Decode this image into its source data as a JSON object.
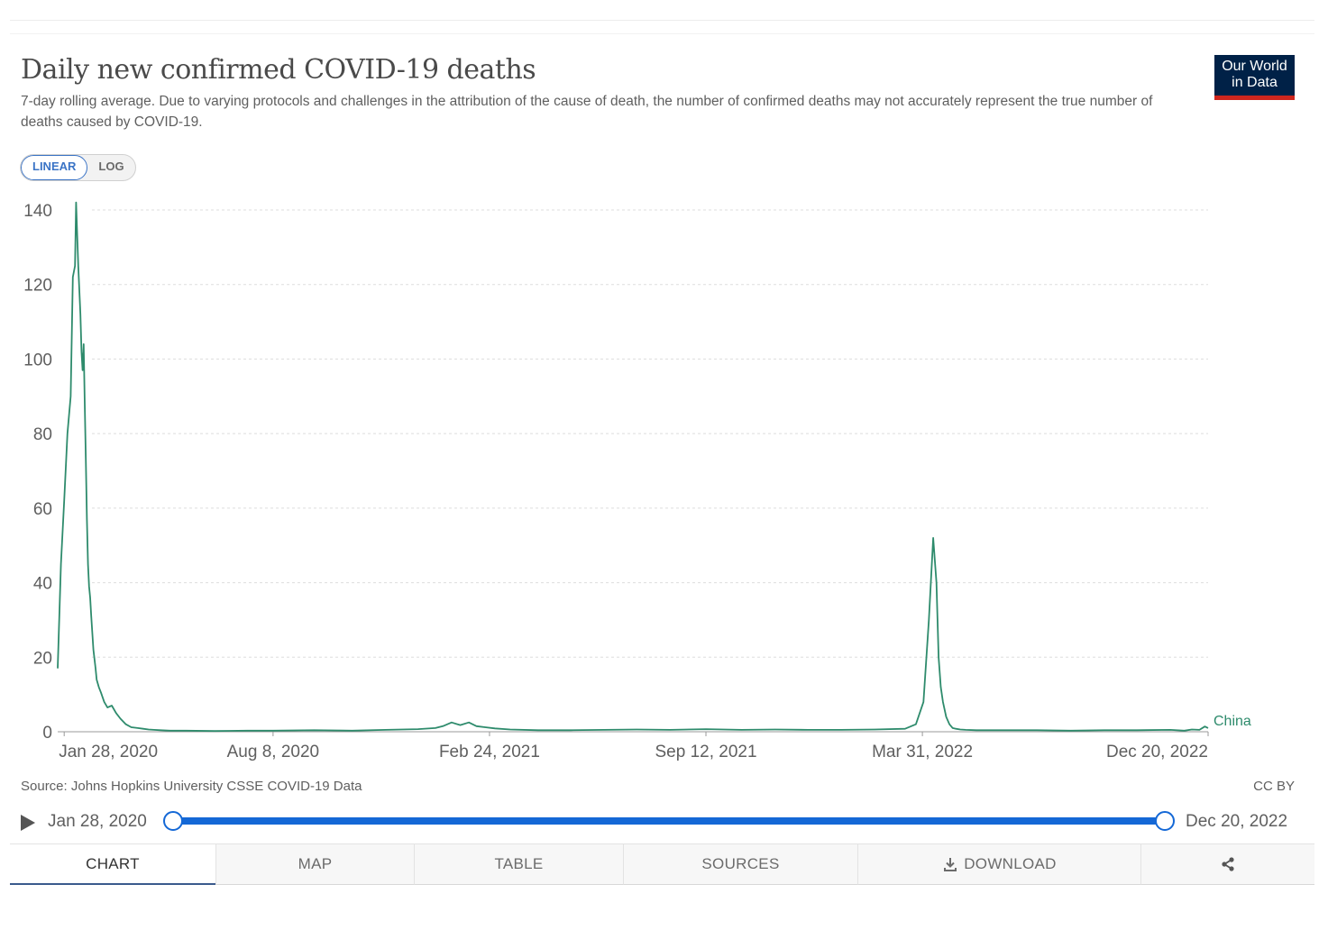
{
  "header": {
    "title": "Daily new confirmed COVID-19 deaths",
    "subtitle": "7-day rolling average. Due to varying protocols and challenges in the attribution of the cause of death, the number of confirmed deaths may not accurately represent the true number of deaths caused by COVID-19.",
    "logo_line1": "Our World",
    "logo_line2": "in Data"
  },
  "scale_toggle": {
    "linear_label": "LINEAR",
    "log_label": "LOG",
    "selected": "LINEAR"
  },
  "footer": {
    "source": "Source: Johns Hopkins University CSSE COVID-19 Data",
    "license": "CC BY"
  },
  "timeline": {
    "start_label": "Jan 28, 2020",
    "end_label": "Dec 20, 2022"
  },
  "tabs": [
    {
      "label": "CHART",
      "active": true
    },
    {
      "label": "MAP",
      "active": false
    },
    {
      "label": "TABLE",
      "active": false
    },
    {
      "label": "SOURCES",
      "active": false
    },
    {
      "label": "DOWNLOAD",
      "active": false
    },
    {
      "label": "",
      "active": false
    }
  ],
  "colors": {
    "series": "#2e8b6c",
    "accent": "#1468d6",
    "logo_bg": "#002147",
    "logo_bar": "#ce261e"
  },
  "chart_data": {
    "type": "line",
    "title": "Daily new confirmed COVID-19 deaths",
    "ylabel": "",
    "xlabel": "",
    "ylim": [
      0,
      140
    ],
    "yticks": [
      0,
      20,
      40,
      60,
      80,
      100,
      120,
      140
    ],
    "xlim": [
      "2020-01-22",
      "2022-12-20"
    ],
    "xticks": [
      {
        "date": "2020-01-28",
        "label": "Jan 28, 2020"
      },
      {
        "date": "2020-08-08",
        "label": "Aug 8, 2020"
      },
      {
        "date": "2021-02-24",
        "label": "Feb 24, 2021"
      },
      {
        "date": "2021-09-12",
        "label": "Sep 12, 2021"
      },
      {
        "date": "2022-03-31",
        "label": "Mar 31, 2022"
      },
      {
        "date": "2022-12-20",
        "label": "Dec 20, 2022"
      }
    ],
    "grid": true,
    "series": [
      {
        "name": "China",
        "x": [
          "2020-01-22",
          "2020-01-25",
          "2020-01-28",
          "2020-01-31",
          "2020-02-03",
          "2020-02-05",
          "2020-02-07",
          "2020-02-08",
          "2020-02-10",
          "2020-02-12",
          "2020-02-13",
          "2020-02-14",
          "2020-02-15",
          "2020-02-16",
          "2020-02-17",
          "2020-02-18",
          "2020-02-19",
          "2020-02-20",
          "2020-02-21",
          "2020-02-22",
          "2020-02-24",
          "2020-02-26",
          "2020-02-27",
          "2020-02-29",
          "2020-03-02",
          "2020-03-05",
          "2020-03-08",
          "2020-03-12",
          "2020-03-16",
          "2020-03-20",
          "2020-03-25",
          "2020-03-30",
          "2020-04-05",
          "2020-04-10",
          "2020-04-15",
          "2020-04-20",
          "2020-04-26",
          "2020-05-05",
          "2020-05-20",
          "2020-06-15",
          "2020-07-15",
          "2020-08-08",
          "2020-09-15",
          "2020-10-20",
          "2020-11-20",
          "2020-12-20",
          "2021-01-05",
          "2021-01-12",
          "2021-01-20",
          "2021-01-28",
          "2021-02-05",
          "2021-02-12",
          "2021-02-20",
          "2021-03-01",
          "2021-03-15",
          "2021-04-10",
          "2021-05-10",
          "2021-06-10",
          "2021-07-10",
          "2021-08-10",
          "2021-09-12",
          "2021-10-15",
          "2021-11-15",
          "2021-12-15",
          "2022-01-15",
          "2022-02-15",
          "2022-03-15",
          "2022-03-25",
          "2022-04-01",
          "2022-04-06",
          "2022-04-10",
          "2022-04-13",
          "2022-04-15",
          "2022-04-17",
          "2022-04-19",
          "2022-04-22",
          "2022-04-25",
          "2022-04-28",
          "2022-05-01",
          "2022-05-05",
          "2022-05-10",
          "2022-05-20",
          "2022-06-15",
          "2022-07-15",
          "2022-08-15",
          "2022-09-15",
          "2022-10-15",
          "2022-11-15",
          "2022-11-28",
          "2022-12-05",
          "2022-12-12",
          "2022-12-17",
          "2022-12-20"
        ],
        "values": [
          17,
          45,
          62,
          80,
          90,
          122,
          125,
          142,
          125,
          112,
          102,
          97,
          104,
          88,
          73,
          57,
          45,
          39,
          36,
          31,
          22,
          17,
          14,
          12,
          10.5,
          8,
          6.5,
          7,
          5,
          3.5,
          2,
          1.2,
          1,
          0.8,
          0.6,
          0.5,
          0.4,
          0.3,
          0.3,
          0.2,
          0.3,
          0.3,
          0.4,
          0.3,
          0.5,
          0.7,
          1,
          1.5,
          2.5,
          1.8,
          2.5,
          1.5,
          1.2,
          0.9,
          0.6,
          0.4,
          0.4,
          0.5,
          0.6,
          0.5,
          0.7,
          0.5,
          0.6,
          0.5,
          0.5,
          0.6,
          0.8,
          2,
          8,
          30,
          52,
          40,
          20,
          12,
          8,
          4,
          2,
          1,
          0.8,
          0.6,
          0.5,
          0.4,
          0.4,
          0.4,
          0.3,
          0.4,
          0.4,
          0.5,
          0.3,
          0.6,
          0.5,
          1.4,
          1
        ]
      }
    ]
  }
}
